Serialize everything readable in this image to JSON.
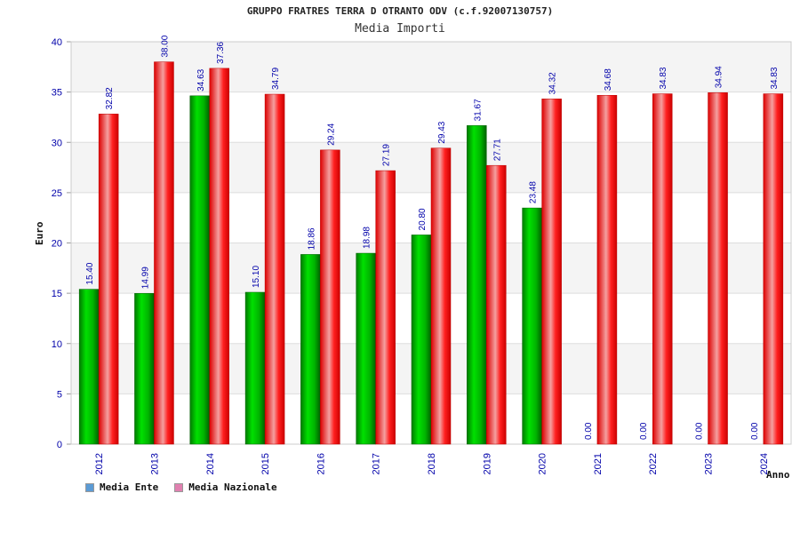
{
  "chart_data": {
    "type": "bar",
    "title": "GRUPPO FRATRES TERRA D OTRANTO ODV (c.f.92007130757)",
    "subtitle": "Media Importi",
    "xlabel": "Anno",
    "ylabel": "Euro",
    "ylim": [
      0,
      40
    ],
    "yticks": [
      0,
      5,
      10,
      15,
      20,
      25,
      30,
      35,
      40
    ],
    "categories": [
      "2012",
      "2013",
      "2014",
      "2015",
      "2016",
      "2017",
      "2018",
      "2019",
      "2020",
      "2021",
      "2022",
      "2023",
      "2024"
    ],
    "series": [
      {
        "name": "Media Ente",
        "values": [
          15.4,
          14.99,
          34.63,
          15.1,
          18.86,
          18.98,
          20.8,
          31.67,
          23.48,
          0.0,
          0.0,
          0.0,
          0.0
        ],
        "labels": [
          "15.40",
          "14.99",
          "34.63",
          "15.10",
          "18.86",
          "18.98",
          "20.80",
          "31.67",
          "23.48",
          "0.00",
          "0.00",
          "0.00",
          "0.00"
        ],
        "color": "#00c000",
        "legend_color": "#5b9bd5"
      },
      {
        "name": "Media Nazionale",
        "values": [
          32.82,
          38.0,
          37.36,
          34.79,
          29.24,
          27.19,
          29.43,
          27.71,
          34.32,
          34.68,
          34.83,
          34.94,
          34.83
        ],
        "labels": [
          "32.82",
          "38.00",
          "37.36",
          "34.79",
          "29.24",
          "27.19",
          "29.43",
          "27.71",
          "34.32",
          "34.68",
          "34.83",
          "34.94",
          "34.83"
        ],
        "color": "#ee1111",
        "legend_color": "#e080b0"
      }
    ],
    "grid": true,
    "legend_position": "bottom-left"
  }
}
